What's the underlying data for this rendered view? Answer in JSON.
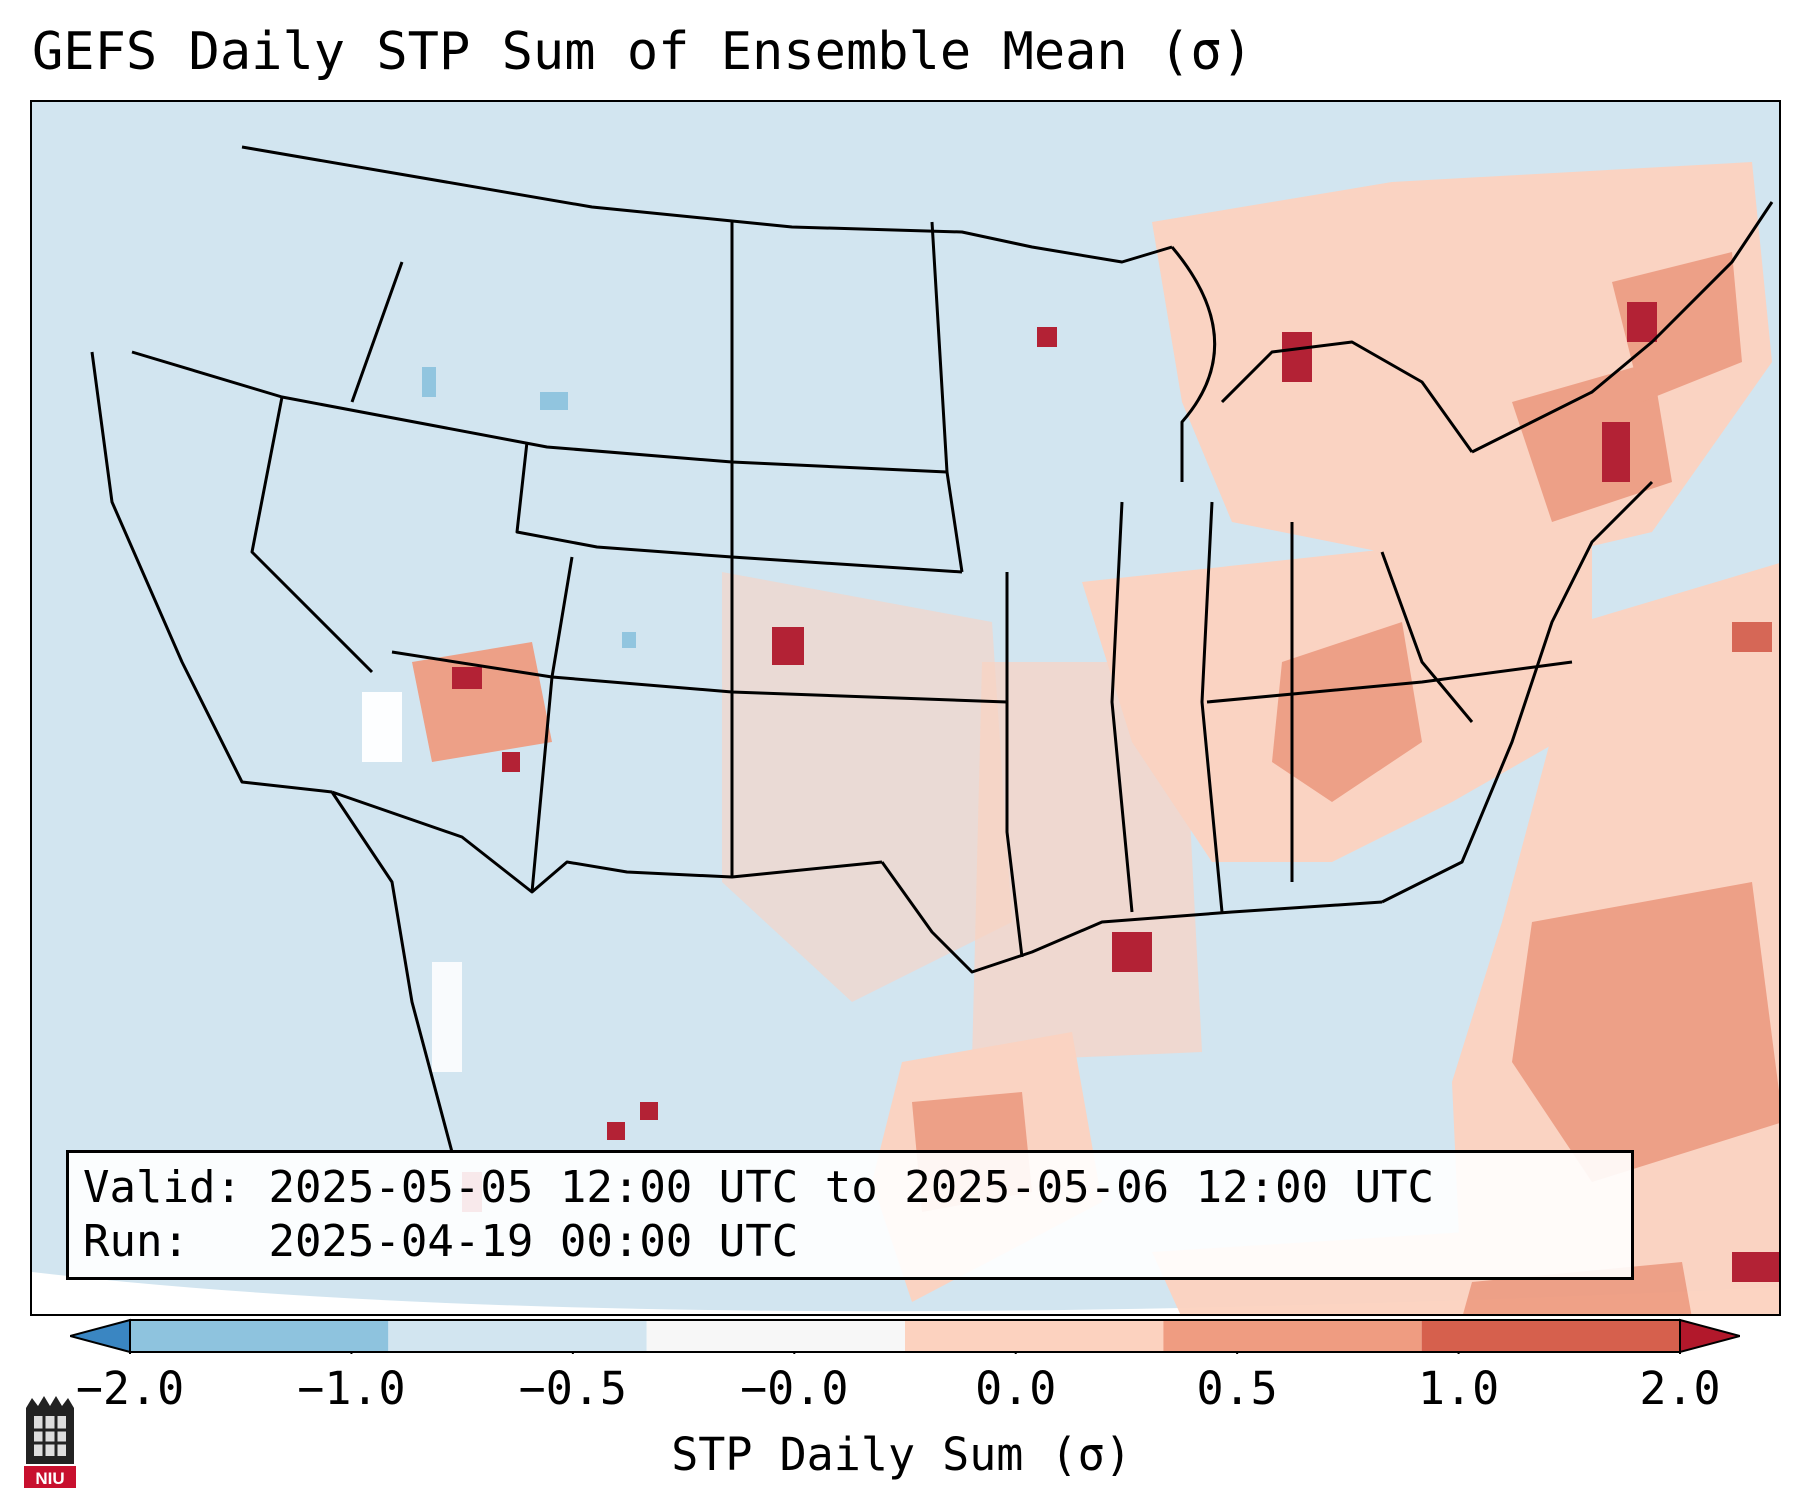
{
  "title": "GEFS Daily STP Sum of Ensemble Mean (σ)",
  "info": {
    "valid_label": "Valid:",
    "valid_value": "2025-05-05 12:00 UTC to 2025-05-06 12:00 UTC",
    "run_label": "Run:",
    "run_value": "2025-04-19 00:00 UTC"
  },
  "colorbar": {
    "label": "STP Daily Sum (σ)",
    "ticks": [
      "−2.0",
      "−1.0",
      "−0.5",
      "−0.0",
      "0.0",
      "0.5",
      "1.0",
      "2.0"
    ],
    "colors": [
      "#3a86c2",
      "#8ec3de",
      "#d2e5f0",
      "#f7f7f7",
      "#fcd2bf",
      "#ef9c81",
      "#d6604d",
      "#b2182b"
    ]
  },
  "map": {
    "ocean_color": "#d2e5f0",
    "land_base_color": "#d2e5f0",
    "projection": "Lambert Conformal (CONUS)"
  },
  "logo": {
    "text": "NIU"
  }
}
